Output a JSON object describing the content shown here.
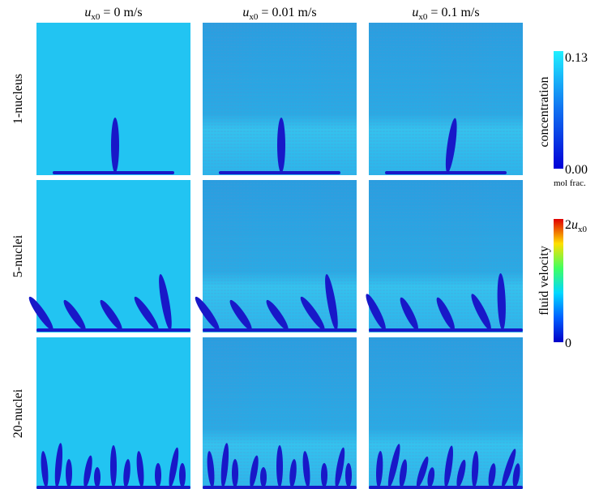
{
  "columns": [
    {
      "symbol": "u",
      "subscript": "x0",
      "text": " = 0 m/s"
    },
    {
      "symbol": "u",
      "subscript": "x0",
      "text": " = 0.01 m/s"
    },
    {
      "symbol": "u",
      "subscript": "x0",
      "text": " = 0.1 m/s"
    }
  ],
  "rows": [
    "1-nucleus",
    "5-nuclei",
    "20-nuclei"
  ],
  "concentration_bar": {
    "label": "concentration",
    "max": "0.13",
    "min": "0.00",
    "unit": "mol frac."
  },
  "velocity_bar": {
    "label": "fluid velocity",
    "max": {
      "prefix": "2",
      "symbol": "u",
      "subscript": "x0"
    },
    "min": "0"
  }
}
